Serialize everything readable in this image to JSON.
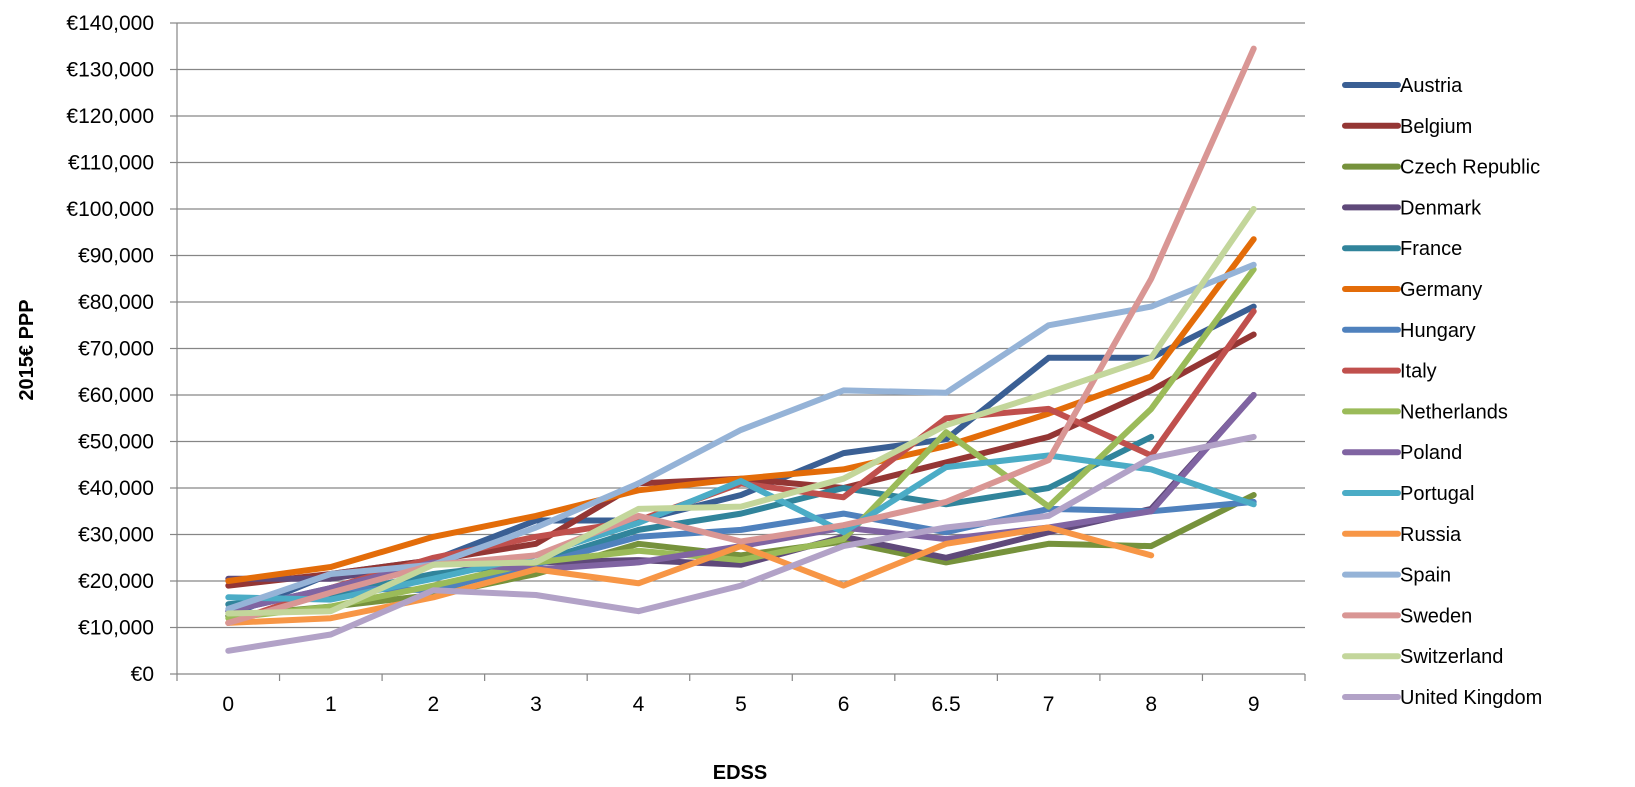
{
  "chart_data": {
    "type": "line",
    "xlabel": "EDSS",
    "ylabel": "2015€ PPP",
    "categories": [
      "0",
      "1",
      "2",
      "3",
      "4",
      "5",
      "6",
      "6.5",
      "7",
      "8",
      "9"
    ],
    "y_tick_labels": [
      "€0",
      "€10,000",
      "€20,000",
      "€30,000",
      "€40,000",
      "€50,000",
      "€60,000",
      "€70,000",
      "€80,000",
      "€90,000",
      "€100,000",
      "€110,000",
      "€120,000",
      "€130,000",
      "€140,000"
    ],
    "ylim": [
      0,
      140000
    ],
    "grid": "horizontal",
    "legend_position": "right",
    "series": [
      {
        "name": "Austria",
        "color": "#3A5F94",
        "values": [
          12500,
          21500,
          24500,
          33000,
          33000,
          38500,
          47500,
          50500,
          68000,
          68000,
          79000
        ]
      },
      {
        "name": "Belgium",
        "color": "#943634",
        "values": [
          19000,
          21500,
          24500,
          28000,
          41000,
          42000,
          40000,
          45500,
          51000,
          61000,
          73000
        ]
      },
      {
        "name": "Czech Republic",
        "color": "#76923C",
        "values": [
          12500,
          14500,
          17000,
          21500,
          28000,
          25500,
          28500,
          24000,
          28000,
          27500,
          38500
        ]
      },
      {
        "name": "Denmark",
        "color": "#5F497A",
        "values": [
          20500,
          20500,
          24000,
          24000,
          24500,
          23500,
          29500,
          25000,
          30500,
          35500,
          60000
        ]
      },
      {
        "name": "France",
        "color": "#31849B",
        "values": [
          15000,
          17000,
          21500,
          24000,
          31000,
          34500,
          40000,
          36500,
          40000,
          51000,
          null
        ]
      },
      {
        "name": "Germany",
        "color": "#E36C09",
        "values": [
          20000,
          23000,
          29500,
          34000,
          39500,
          42000,
          44000,
          49000,
          56000,
          64000,
          93500
        ]
      },
      {
        "name": "Hungary",
        "color": "#4F81BD",
        "values": [
          13500,
          18500,
          18000,
          23500,
          29500,
          31000,
          34500,
          30500,
          35500,
          35000,
          37000
        ]
      },
      {
        "name": "Italy",
        "color": "#C0504D",
        "values": [
          11000,
          18500,
          25000,
          29500,
          33000,
          41000,
          38000,
          55000,
          57000,
          47000,
          78000
        ]
      },
      {
        "name": "Netherlands",
        "color": "#9BBB59",
        "values": [
          12000,
          14500,
          19000,
          24000,
          26500,
          24500,
          29000,
          52000,
          36000,
          57000,
          87000
        ]
      },
      {
        "name": "Poland",
        "color": "#8064A2",
        "values": [
          13500,
          18500,
          24000,
          22500,
          24000,
          27500,
          31500,
          29000,
          31500,
          35000,
          60000
        ]
      },
      {
        "name": "Portugal",
        "color": "#4BACC6",
        "values": [
          16500,
          16000,
          20500,
          25500,
          32500,
          41500,
          30500,
          44500,
          47000,
          44000,
          36500
        ]
      },
      {
        "name": "Russia",
        "color": "#F79646",
        "values": [
          11000,
          12000,
          16500,
          22500,
          19500,
          27500,
          19000,
          28000,
          31500,
          25500,
          null
        ]
      },
      {
        "name": "Spain",
        "color": "#95B3D7",
        "values": [
          14000,
          21500,
          23500,
          31500,
          41000,
          52500,
          61000,
          60500,
          75000,
          79000,
          88000
        ]
      },
      {
        "name": "Sweden",
        "color": "#D99694",
        "values": [
          11000,
          17500,
          23500,
          25500,
          34000,
          28500,
          32000,
          37000,
          46000,
          85000,
          134500
        ]
      },
      {
        "name": "Switzerland",
        "color": "#C3D69B",
        "values": [
          13000,
          13500,
          23500,
          24000,
          35500,
          36000,
          42000,
          53500,
          60500,
          68000,
          100000
        ]
      },
      {
        "name": "United Kingdom",
        "color": "#B2A2C7",
        "values": [
          5000,
          8500,
          18000,
          17000,
          13500,
          19000,
          27500,
          31500,
          34000,
          46500,
          51000
        ]
      }
    ]
  }
}
